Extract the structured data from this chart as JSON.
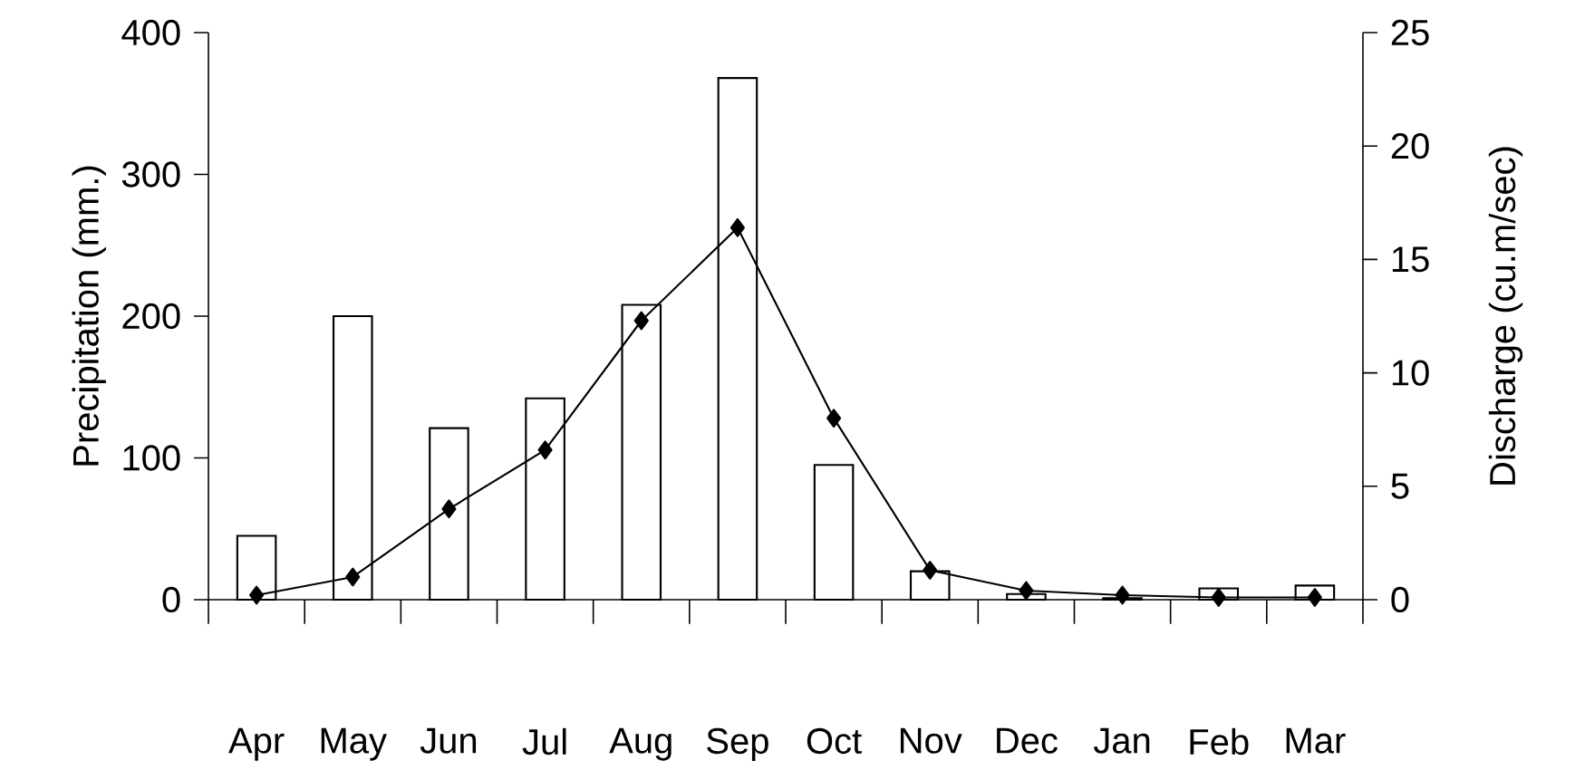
{
  "chart_data": {
    "type": "bar",
    "ylabel": "Precipitation (mm.)",
    "y2label": "Discharge (cu.m/sec)",
    "categories": [
      "Apr",
      "May",
      "Jun",
      "Jul",
      "Aug",
      "Sep",
      "Oct",
      "Nov",
      "Dec",
      "Jan",
      "Feb",
      "Mar"
    ],
    "series": [
      {
        "color": "#ffffff",
        "values": [
          45,
          200,
          121,
          142,
          208,
          368,
          95,
          20,
          4,
          1,
          8,
          10
        ]
      },
      {
        "type": "line",
        "axis": "y2",
        "color": "#000000",
        "values": [
          0.2,
          1.0,
          4.0,
          6.6,
          12.3,
          16.4,
          8.0,
          1.3,
          0.4,
          0.2,
          0.1,
          0.1
        ]
      }
    ],
    "marker": "diamond",
    "ylim": [
      0,
      400
    ],
    "yticks": [
      0,
      100,
      200,
      300,
      400
    ],
    "y2lim": [
      0,
      25
    ],
    "y2ticks": [
      0,
      5,
      10,
      15,
      20,
      25
    ]
  }
}
